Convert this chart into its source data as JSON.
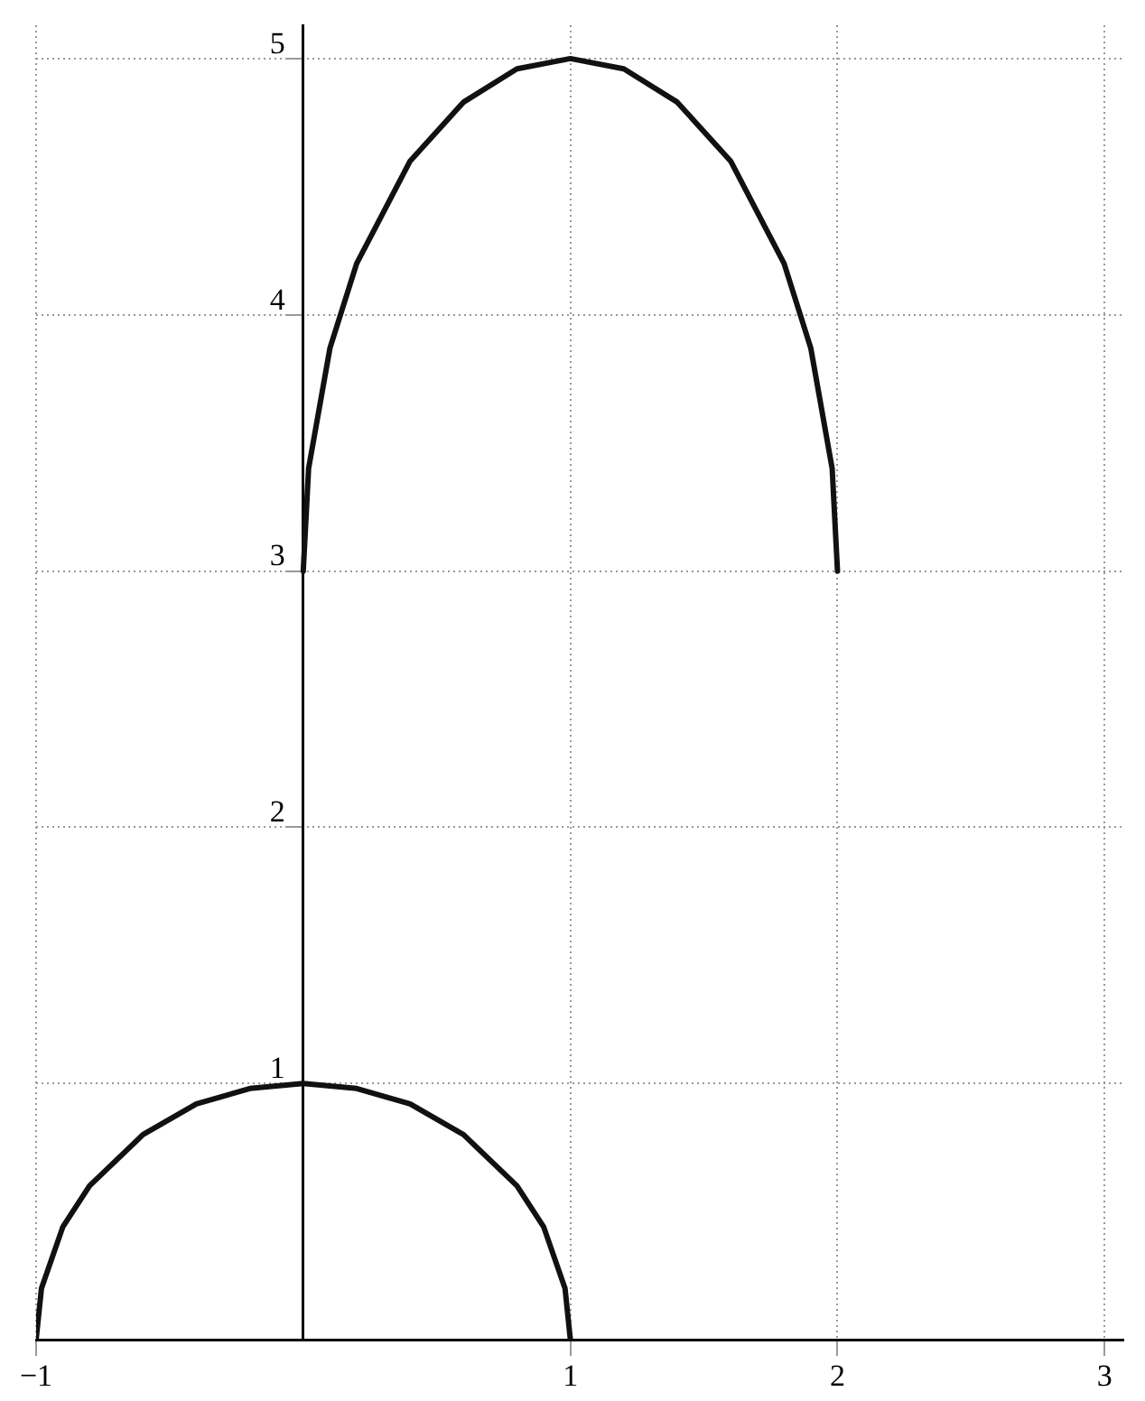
{
  "chart_data": {
    "type": "line",
    "series": [
      {
        "color": "#111111",
        "x": [
          -1,
          -0.98,
          -0.9,
          -0.8,
          -0.6,
          -0.4,
          -0.2,
          0,
          0.2,
          0.4,
          0.6,
          0.8,
          0.9,
          0.98,
          1
        ],
        "values": [
          0,
          0.2,
          0.44,
          0.6,
          0.8,
          0.92,
          0.98,
          1,
          0.98,
          0.92,
          0.8,
          0.6,
          0.44,
          0.2,
          0
        ]
      },
      {
        "color": "#111111",
        "x": [
          0,
          0.02,
          0.1,
          0.2,
          0.4,
          0.6,
          0.8,
          1,
          1.2,
          1.4,
          1.6,
          1.8,
          1.9,
          1.98,
          2
        ],
        "values": [
          3,
          3.4,
          3.87,
          4.2,
          4.6,
          4.83,
          4.96,
          5,
          4.96,
          4.83,
          4.6,
          4.2,
          3.87,
          3.4,
          3
        ]
      }
    ],
    "xlim": [
      -1,
      3.07
    ],
    "ylim": [
      0,
      5.13
    ],
    "xticks": [
      {
        "value": -1,
        "label": "−1"
      },
      1,
      2,
      3
    ],
    "yticks": [
      1,
      2,
      3,
      4,
      5
    ],
    "grid": true,
    "marker": "none",
    "line_style": "solid",
    "legend": false
  }
}
